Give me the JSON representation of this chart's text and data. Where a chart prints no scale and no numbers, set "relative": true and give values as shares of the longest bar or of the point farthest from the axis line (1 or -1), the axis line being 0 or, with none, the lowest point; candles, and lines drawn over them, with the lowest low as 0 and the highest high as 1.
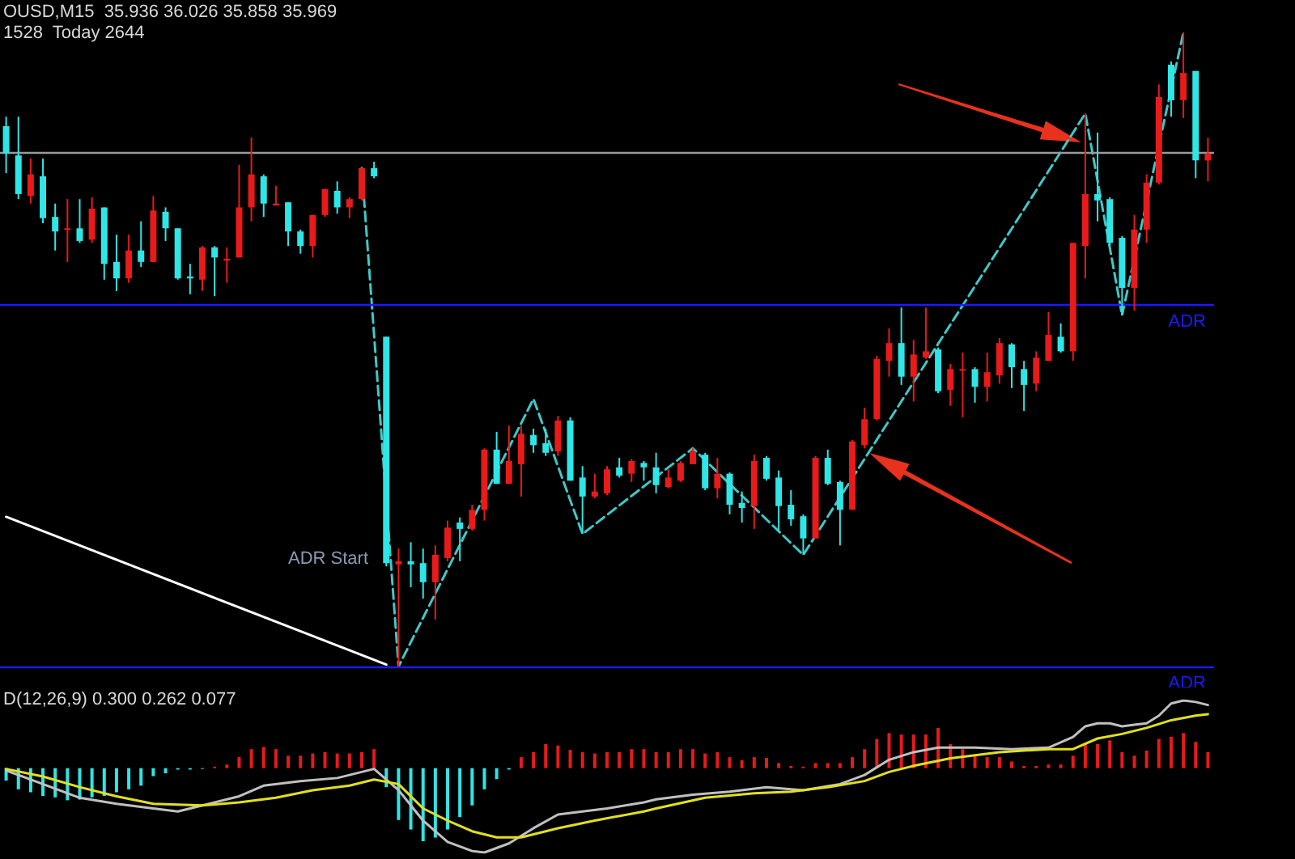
{
  "chart_data": [
    {
      "type": "candlestick",
      "title": "OUSD,M15  35.936 36.026 35.858 35.969",
      "subtitle": "1528  Today 2644",
      "relative": true,
      "tick_labels": false,
      "categories": [
        null,
        null,
        null,
        null,
        null,
        null,
        null,
        null,
        null,
        null,
        null,
        null,
        null,
        null,
        null,
        null,
        null,
        null,
        null,
        null,
        null,
        null,
        null,
        null,
        null,
        null,
        null,
        null,
        null,
        null,
        null,
        null,
        null,
        null,
        null,
        null,
        null,
        null,
        null,
        null,
        null,
        null,
        null,
        null,
        null,
        null,
        null,
        null,
        null,
        null,
        null,
        null,
        null,
        null,
        null,
        null,
        null,
        null,
        null,
        null,
        null,
        null,
        null,
        null,
        null,
        null,
        null,
        null,
        null,
        null,
        null,
        null,
        null,
        null,
        null,
        null,
        null,
        null,
        null,
        null,
        null,
        null,
        null,
        null,
        null,
        null,
        null,
        null,
        null,
        null,
        null,
        null,
        null,
        null,
        null,
        null,
        null,
        null,
        null
      ],
      "ohlc": [
        [
          0.852,
          0.867,
          0.778,
          0.809
        ],
        [
          0.806,
          0.867,
          0.737,
          0.745
        ],
        [
          0.742,
          0.801,
          0.73,
          0.776
        ],
        [
          0.773,
          0.801,
          0.699,
          0.707
        ],
        [
          0.709,
          0.73,
          0.656,
          0.686
        ],
        [
          0.689,
          0.737,
          0.638,
          0.691
        ],
        [
          0.691,
          0.737,
          0.668,
          0.671
        ],
        [
          0.673,
          0.74,
          0.668,
          0.722
        ],
        [
          0.724,
          0.724,
          0.61,
          0.635
        ],
        [
          0.638,
          0.681,
          0.592,
          0.612
        ],
        [
          0.612,
          0.681,
          0.605,
          0.656
        ],
        [
          0.656,
          0.702,
          0.63,
          0.638
        ],
        [
          0.638,
          0.742,
          0.638,
          0.719
        ],
        [
          0.717,
          0.724,
          0.671,
          0.691
        ],
        [
          0.691,
          0.691,
          0.61,
          0.612
        ],
        [
          0.615,
          0.635,
          0.587,
          0.612
        ],
        [
          0.61,
          0.663,
          0.592,
          0.661
        ],
        [
          0.661,
          0.663,
          0.584,
          0.645
        ],
        [
          0.64,
          0.661,
          0.605,
          0.643
        ],
        [
          0.645,
          0.791,
          0.645,
          0.724
        ],
        [
          0.724,
          0.834,
          0.702,
          0.776
        ],
        [
          0.773,
          0.776,
          0.709,
          0.73
        ],
        [
          0.727,
          0.758,
          0.727,
          0.73
        ],
        [
          0.732,
          0.732,
          0.663,
          0.686
        ],
        [
          0.686,
          0.689,
          0.651,
          0.663
        ],
        [
          0.663,
          0.712,
          0.645,
          0.712
        ],
        [
          0.712,
          0.753,
          0.709,
          0.753
        ],
        [
          0.75,
          0.765,
          0.714,
          0.724
        ],
        [
          0.724,
          0.74,
          0.707,
          0.737
        ],
        [
          0.737,
          0.786,
          0.735,
          0.786
        ],
        [
          0.786,
          0.796,
          0.77,
          0.773
        ],
        [
          0.52,
          0.52,
          0.158,
          0.163
        ],
        [
          0.161,
          0.186,
          0,
          0.166
        ],
        [
          0.166,
          0.196,
          0.125,
          0.161
        ],
        [
          0.163,
          0.186,
          0.107,
          0.133
        ],
        [
          0.133,
          0.191,
          0.074,
          0.176
        ],
        [
          0.171,
          0.23,
          0.166,
          0.219
        ],
        [
          0.227,
          0.235,
          0.166,
          0.217
        ],
        [
          0.217,
          0.255,
          0.214,
          0.247
        ],
        [
          0.247,
          0.344,
          0.23,
          0.342
        ],
        [
          0.342,
          0.37,
          0.288,
          0.288
        ],
        [
          0.288,
          0.38,
          0.288,
          0.324
        ],
        [
          0.319,
          0.38,
          0.268,
          0.367
        ],
        [
          0.365,
          0.375,
          0.337,
          0.349
        ],
        [
          0.352,
          0.375,
          0.332,
          0.337
        ],
        [
          0.339,
          0.395,
          0.332,
          0.388
        ],
        [
          0.388,
          0.393,
          0.293,
          0.293
        ],
        [
          0.298,
          0.316,
          0.209,
          0.268
        ],
        [
          0.268,
          0.304,
          0.265,
          0.276
        ],
        [
          0.273,
          0.316,
          0.27,
          0.311
        ],
        [
          0.314,
          0.329,
          0.298,
          0.301
        ],
        [
          0.304,
          0.327,
          0.291,
          0.324
        ],
        [
          0.321,
          0.324,
          0.293,
          0.314
        ],
        [
          0.314,
          0.337,
          0.273,
          0.286
        ],
        [
          0.283,
          0.311,
          0.281,
          0.298
        ],
        [
          0.293,
          0.324,
          0.291,
          0.321
        ],
        [
          0.319,
          0.344,
          0.319,
          0.339
        ],
        [
          0.334,
          0.337,
          0.278,
          0.281
        ],
        [
          0.281,
          0.329,
          0.265,
          0.304
        ],
        [
          0.304,
          0.306,
          0.24,
          0.255
        ],
        [
          0.258,
          0.276,
          0.227,
          0.25
        ],
        [
          0.253,
          0.334,
          0.217,
          0.324
        ],
        [
          0.329,
          0.332,
          0.293,
          0.296
        ],
        [
          0.298,
          0.309,
          0.214,
          0.253
        ],
        [
          0.255,
          0.278,
          0.222,
          0.232
        ],
        [
          0.237,
          0.24,
          0.176,
          0.202
        ],
        [
          0.202,
          0.332,
          0.202,
          0.329
        ],
        [
          0.329,
          0.342,
          0.286,
          0.288
        ],
        [
          0.291,
          0.293,
          0.191,
          0.247
        ],
        [
          0.247,
          0.357,
          0.247,
          0.355
        ],
        [
          0.349,
          0.408,
          0.344,
          0.39
        ],
        [
          0.39,
          0.49,
          0.388,
          0.485
        ],
        [
          0.482,
          0.533,
          0.457,
          0.51
        ],
        [
          0.51,
          0.566,
          0.444,
          0.457
        ],
        [
          0.457,
          0.515,
          0.418,
          0.492
        ],
        [
          0.487,
          0.566,
          0.485,
          0.497
        ],
        [
          0.5,
          0.503,
          0.431,
          0.434
        ],
        [
          0.436,
          0.477,
          0.411,
          0.469
        ],
        [
          0.467,
          0.495,
          0.393,
          0.469
        ],
        [
          0.469,
          0.472,
          0.416,
          0.441
        ],
        [
          0.441,
          0.495,
          0.418,
          0.464
        ],
        [
          0.459,
          0.518,
          0.446,
          0.51
        ],
        [
          0.508,
          0.51,
          0.439,
          0.472
        ],
        [
          0.469,
          0.482,
          0.403,
          0.444
        ],
        [
          0.446,
          0.497,
          0.434,
          0.487
        ],
        [
          0.482,
          0.559,
          0.482,
          0.523
        ],
        [
          0.52,
          0.541,
          0.495,
          0.497
        ],
        [
          0.497,
          0.668,
          0.482,
          0.668
        ],
        [
          0.663,
          0.872,
          0.612,
          0.745
        ],
        [
          0.745,
          0.842,
          0.702,
          0.735
        ],
        [
          0.737,
          0.74,
          0.663,
          0.668
        ],
        [
          0.676,
          0.679,
          0.554,
          0.597
        ],
        [
          0.597,
          0.712,
          0.561,
          0.689
        ],
        [
          0.689,
          0.776,
          0.668,
          0.763
        ],
        [
          0.763,
          0.918,
          0.76,
          0.898
        ],
        [
          0.949,
          0.954,
          0.867,
          0.893
        ],
        [
          0.893,
          1,
          0.865,
          0.936
        ],
        [
          0.939,
          0.939,
          0.77,
          0.798
        ],
        [
          0.798,
          0.834,
          0.765,
          0.809
        ]
      ],
      "colors": [
        "#2ee6e6",
        "#2ee6e6",
        "#e81a1a",
        "#2ee6e6",
        "#2ee6e6",
        "#e81a1a",
        "#2ee6e6",
        "#e81a1a",
        "#2ee6e6",
        "#2ee6e6",
        "#e81a1a",
        "#2ee6e6",
        "#e81a1a",
        "#2ee6e6",
        "#2ee6e6",
        "#2ee6e6",
        "#e81a1a",
        "#2ee6e6",
        "#e81a1a",
        "#e81a1a",
        "#e81a1a",
        "#2ee6e6",
        "#e81a1a",
        "#2ee6e6",
        "#2ee6e6",
        "#e81a1a",
        "#e81a1a",
        "#2ee6e6",
        "#e81a1a",
        "#e81a1a",
        "#2ee6e6",
        "#2ee6e6",
        "#e81a1a",
        "#2ee6e6",
        "#2ee6e6",
        "#e81a1a",
        "#e81a1a",
        "#2ee6e6",
        "#e81a1a",
        "#e81a1a",
        "#2ee6e6",
        "#e81a1a",
        "#e81a1a",
        "#2ee6e6",
        "#2ee6e6",
        "#e81a1a",
        "#2ee6e6",
        "#2ee6e6",
        "#e81a1a",
        "#e81a1a",
        "#2ee6e6",
        "#e81a1a",
        "#2ee6e6",
        "#2ee6e6",
        "#e81a1a",
        "#e81a1a",
        "#e81a1a",
        "#2ee6e6",
        "#e81a1a",
        "#2ee6e6",
        "#2ee6e6",
        "#e81a1a",
        "#2ee6e6",
        "#2ee6e6",
        "#2ee6e6",
        "#2ee6e6",
        "#e81a1a",
        "#2ee6e6",
        "#2ee6e6",
        "#e81a1a",
        "#e81a1a",
        "#e81a1a",
        "#e81a1a",
        "#2ee6e6",
        "#e81a1a",
        "#e81a1a",
        "#2ee6e6",
        "#e81a1a",
        "#e81a1a",
        "#2ee6e6",
        "#e81a1a",
        "#e81a1a",
        "#2ee6e6",
        "#2ee6e6",
        "#e81a1a",
        "#e81a1a",
        "#2ee6e6",
        "#e81a1a",
        "#e81a1a",
        "#2ee6e6",
        "#2ee6e6",
        "#2ee6e6",
        "#e81a1a",
        "#e81a1a",
        "#e81a1a",
        "#2ee6e6",
        "#e81a1a",
        "#2ee6e6",
        "#e81a1a"
      ],
      "annotations": [
        "ADR Start"
      ]
    },
    {
      "type": "line",
      "relative": true,
      "tick_labels": false,
      "ref_lines": [
        {
          "axis": "y",
          "value": 0.811,
          "color": "#9a9a9a"
        },
        {
          "axis": "y",
          "value": 0.574,
          "label": "ADR",
          "color": "#1a1aff"
        },
        {
          "axis": "y",
          "value": 0,
          "label": "ADR",
          "color": "#1a1aff"
        }
      ],
      "categories": [
        null,
        null,
        null,
        null,
        null,
        null,
        null,
        null,
        null,
        null,
        null,
        null,
        null,
        null,
        null,
        null,
        null,
        null,
        null,
        null,
        null,
        null,
        null,
        null,
        null,
        null,
        null,
        null,
        null,
        null,
        null,
        null,
        null,
        null,
        null,
        null,
        null,
        null,
        null,
        null,
        null,
        null,
        null,
        null,
        null,
        null,
        null,
        null,
        null,
        null,
        null,
        null,
        null,
        null,
        null,
        null,
        null,
        null,
        null,
        null,
        null,
        null,
        null,
        null,
        null,
        null,
        null,
        null,
        null,
        null,
        null,
        null,
        null,
        null,
        null,
        null,
        null,
        null,
        null,
        null,
        null,
        null,
        null,
        null,
        null,
        null,
        null,
        null,
        null,
        null,
        null,
        null,
        null,
        null,
        null,
        null,
        null,
        null,
        null
      ],
      "series": [
        {
          "color": "#40c8c8",
          "line_style": "dashed",
          "values": [
            null,
            null,
            null,
            null,
            null,
            null,
            null,
            null,
            null,
            null,
            null,
            null,
            null,
            null,
            null,
            null,
            null,
            null,
            null,
            null,
            null,
            null,
            null,
            null,
            null,
            null,
            null,
            null,
            null,
            0.786,
            null,
            null,
            0,
            null,
            null,
            null,
            null,
            null,
            null,
            null,
            null,
            null,
            null,
            0.422,
            null,
            null,
            null,
            0.209,
            null,
            null,
            null,
            null,
            null,
            null,
            null,
            null,
            0.344,
            null,
            null,
            null,
            null,
            null,
            null,
            null,
            null,
            0.176,
            null,
            null,
            null,
            null,
            null,
            null,
            null,
            null,
            null,
            null,
            null,
            null,
            null,
            null,
            null,
            null,
            null,
            null,
            null,
            null,
            null,
            null,
            0.872,
            null,
            null,
            0.554,
            null,
            null,
            null,
            null,
            1,
            null,
            null
          ]
        },
        {
          "color": "#ffffff",
          "values": [
            0.236,
            null,
            null,
            null,
            null,
            null,
            null,
            null,
            null,
            null,
            null,
            null,
            null,
            null,
            null,
            null,
            null,
            null,
            null,
            null,
            null,
            null,
            null,
            null,
            null,
            null,
            null,
            null,
            null,
            null,
            null,
            0.003,
            null,
            null,
            null,
            null,
            null,
            null,
            null,
            null,
            null,
            null,
            null,
            null,
            null,
            null,
            null,
            null,
            null,
            null,
            null,
            null,
            null,
            null,
            null,
            null,
            null,
            null,
            null,
            null,
            null,
            null,
            null,
            null,
            null,
            null,
            null,
            null,
            null,
            null,
            null,
            null,
            null,
            null,
            null,
            null,
            null,
            null,
            null,
            null,
            null,
            null,
            null,
            null,
            null,
            null,
            null,
            null,
            null,
            null,
            null,
            null,
            null,
            null,
            null,
            null,
            null,
            null,
            null
          ]
        }
      ]
    },
    {
      "type": "bar",
      "title": "D(12,26,9) 0.300 0.262 0.077",
      "relative": true,
      "tick_labels": false,
      "categories": [
        null,
        null,
        null,
        null,
        null,
        null,
        null,
        null,
        null,
        null,
        null,
        null,
        null,
        null,
        null,
        null,
        null,
        null,
        null,
        null,
        null,
        null,
        null,
        null,
        null,
        null,
        null,
        null,
        null,
        null,
        null,
        null,
        null,
        null,
        null,
        null,
        null,
        null,
        null,
        null,
        null,
        null,
        null,
        null,
        null,
        null,
        null,
        null,
        null,
        null,
        null,
        null,
        null,
        null,
        null,
        null,
        null,
        null,
        null,
        null,
        null,
        null,
        null,
        null,
        null,
        null,
        null,
        null,
        null,
        null,
        null,
        null,
        null,
        null,
        null,
        null,
        null,
        null,
        null,
        null,
        null,
        null,
        null,
        null,
        null,
        null,
        null,
        null,
        null,
        null,
        null,
        null,
        null,
        null,
        null,
        null,
        null,
        null,
        null
      ],
      "values": [
        -0.17,
        -0.29,
        -0.33,
        -0.38,
        -0.4,
        -0.44,
        -0.43,
        -0.4,
        -0.38,
        -0.33,
        -0.29,
        -0.24,
        -0.11,
        -0.07,
        -0.02,
        -0.02,
        -0.01,
        0.02,
        0.05,
        0.15,
        0.26,
        0.29,
        0.26,
        0.17,
        0.17,
        0.2,
        0.22,
        0.2,
        0.2,
        0.22,
        0.26,
        -0.26,
        -0.71,
        -0.84,
        -1,
        -0.95,
        -0.84,
        -0.67,
        -0.51,
        -0.29,
        -0.15,
        -0.02,
        0.15,
        0.22,
        0.33,
        0.31,
        0.25,
        0.22,
        0.2,
        0.22,
        0.22,
        0.26,
        0.26,
        0.22,
        0.22,
        0.26,
        0.26,
        0.2,
        0.22,
        0.15,
        0.11,
        0.15,
        0.14,
        0.07,
        0.03,
        0.02,
        0.07,
        0.07,
        0.07,
        0.15,
        0.26,
        0.4,
        0.48,
        0.46,
        0.46,
        0.46,
        0.55,
        0.33,
        0.26,
        0.17,
        0.15,
        0.15,
        0.09,
        0.03,
        0.03,
        0.05,
        0.05,
        0.17,
        0.33,
        0.33,
        0.38,
        0.22,
        0.17,
        0.24,
        0.4,
        0.43,
        0.48,
        0.36,
        0.22
      ],
      "colors": [
        "#2ee6e6",
        "#2ee6e6",
        "#2ee6e6",
        "#2ee6e6",
        "#2ee6e6",
        "#2ee6e6",
        "#2ee6e6",
        "#2ee6e6",
        "#2ee6e6",
        "#2ee6e6",
        "#2ee6e6",
        "#2ee6e6",
        "#2ee6e6",
        "#2ee6e6",
        "#2ee6e6",
        "#2ee6e6",
        "#2ee6e6",
        "#e81a1a",
        "#e81a1a",
        "#e81a1a",
        "#e81a1a",
        "#e81a1a",
        "#e81a1a",
        "#e81a1a",
        "#e81a1a",
        "#e81a1a",
        "#e81a1a",
        "#e81a1a",
        "#e81a1a",
        "#e81a1a",
        "#e81a1a",
        "#2ee6e6",
        "#2ee6e6",
        "#2ee6e6",
        "#2ee6e6",
        "#2ee6e6",
        "#2ee6e6",
        "#2ee6e6",
        "#2ee6e6",
        "#2ee6e6",
        "#2ee6e6",
        "#2ee6e6",
        "#e81a1a",
        "#e81a1a",
        "#e81a1a",
        "#e81a1a",
        "#e81a1a",
        "#e81a1a",
        "#e81a1a",
        "#e81a1a",
        "#e81a1a",
        "#e81a1a",
        "#e81a1a",
        "#e81a1a",
        "#e81a1a",
        "#e81a1a",
        "#e81a1a",
        "#e81a1a",
        "#e81a1a",
        "#e81a1a",
        "#e81a1a",
        "#e81a1a",
        "#e81a1a",
        "#e81a1a",
        "#e81a1a",
        "#e81a1a",
        "#e81a1a",
        "#e81a1a",
        "#e81a1a",
        "#e81a1a",
        "#e81a1a",
        "#e81a1a",
        "#e81a1a",
        "#e81a1a",
        "#e81a1a",
        "#e81a1a",
        "#e81a1a",
        "#e81a1a",
        "#e81a1a",
        "#e81a1a",
        "#e81a1a",
        "#e81a1a",
        "#e81a1a",
        "#e81a1a",
        "#e81a1a",
        "#e81a1a",
        "#e81a1a",
        "#e81a1a",
        "#e81a1a",
        "#e81a1a",
        "#e81a1a",
        "#e81a1a",
        "#e81a1a",
        "#e81a1a",
        "#e81a1a",
        "#e81a1a",
        "#e81a1a",
        "#e81a1a",
        "#e81a1a"
      ]
    },
    {
      "type": "line",
      "relative": true,
      "tick_labels": false,
      "categories": [
        null,
        null,
        null,
        null,
        null,
        null,
        null,
        null,
        null,
        null,
        null,
        null,
        null,
        null,
        null,
        null,
        null,
        null,
        null,
        null,
        null,
        null,
        null,
        null,
        null,
        null,
        null,
        null,
        null,
        null,
        null,
        null,
        null,
        null,
        null,
        null,
        null,
        null,
        null,
        null,
        null,
        null,
        null,
        null,
        null,
        null,
        null,
        null,
        null,
        null,
        null,
        null,
        null,
        null,
        null,
        null,
        null,
        null,
        null,
        null,
        null,
        null,
        null,
        null,
        null,
        null,
        null,
        null,
        null,
        null,
        null,
        null,
        null,
        null,
        null,
        null,
        null,
        null,
        null,
        null,
        null,
        null,
        null,
        null,
        null,
        null,
        null,
        null,
        null,
        null,
        null,
        null,
        null,
        null,
        null,
        null,
        null,
        null,
        null
      ],
      "series": [
        {
          "color": "#c0c0c0",
          "values": [
            0.54,
            null,
            null,
            0.45,
            null,
            null,
            0.36,
            null,
            null,
            0.32,
            null,
            null,
            0.29,
            null,
            0.27,
            null,
            0.31,
            null,
            null,
            0.37,
            null,
            0.44,
            null,
            null,
            0.47,
            null,
            null,
            0.49,
            null,
            null,
            0.55,
            null,
            0.41,
            null,
            0.21,
            null,
            0.07,
            null,
            0.01,
            0,
            null,
            0.06,
            null,
            0.16,
            null,
            0.25,
            null,
            0.27,
            null,
            0.29,
            null,
            null,
            0.33,
            0.35,
            null,
            null,
            0.38,
            null,
            null,
            0.4,
            null,
            null,
            0.43,
            null,
            null,
            0.41,
            null,
            null,
            0.45,
            null,
            0.51,
            null,
            0.61,
            null,
            0.66,
            null,
            0.69,
            null,
            null,
            0.69,
            null,
            null,
            0.68,
            null,
            null,
            0.69,
            null,
            0.76,
            0.83,
            0.85,
            0.85,
            0.83,
            0.84,
            0.85,
            0.9,
            0.98,
            1,
            0.99,
            0.97
          ]
        },
        {
          "color": "#e0e020",
          "values": [
            0.55,
            null,
            null,
            0.5,
            null,
            null,
            0.43,
            null,
            null,
            0.37,
            null,
            null,
            0.32,
            null,
            null,
            null,
            0.31,
            null,
            null,
            0.33,
            null,
            null,
            0.36,
            null,
            null,
            0.41,
            null,
            null,
            0.44,
            null,
            0.48,
            null,
            0.45,
            null,
            0.29,
            null,
            0.21,
            null,
            0.14,
            null,
            0.1,
            null,
            0.1,
            null,
            null,
            0.16,
            null,
            null,
            0.21,
            null,
            null,
            null,
            0.27,
            0.29,
            null,
            null,
            null,
            0.36,
            null,
            null,
            null,
            0.39,
            null,
            null,
            0.4,
            null,
            null,
            0.43,
            null,
            null,
            0.47,
            null,
            0.53,
            null,
            0.57,
            null,
            null,
            0.62,
            null,
            null,
            null,
            0.66,
            null,
            null,
            null,
            0.68,
            null,
            0.68,
            null,
            0.75,
            null,
            0.78,
            null,
            0.82,
            null,
            0.87,
            null,
            0.9,
            0.91
          ]
        }
      ]
    }
  ]
}
